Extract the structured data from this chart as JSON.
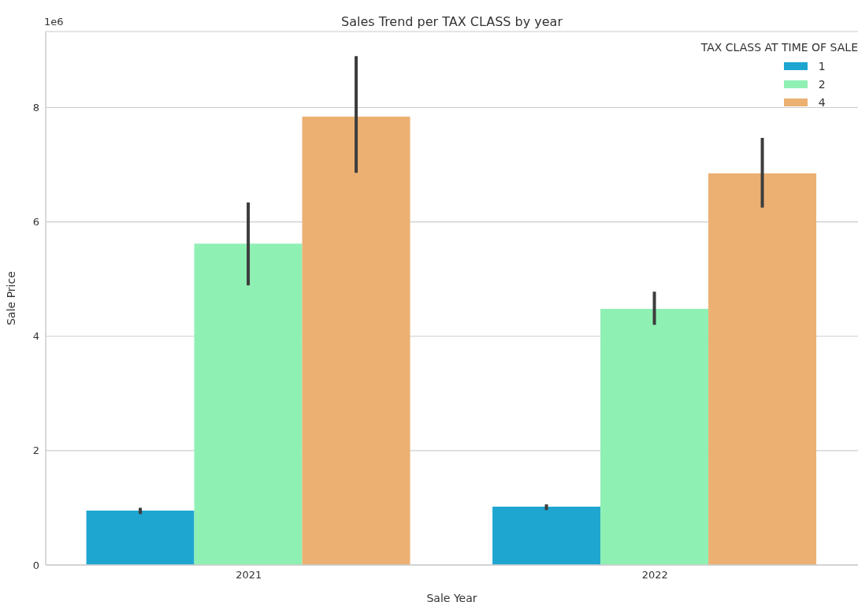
{
  "chart_data": {
    "type": "bar",
    "title": "Sales Trend per TAX CLASS by year",
    "xlabel": "Sale Year",
    "ylabel": "Sale Price",
    "legend_title": "TAX CLASS AT TIME OF SALE",
    "annotations": [
      "1e6"
    ],
    "categories": [
      "2021",
      "2022"
    ],
    "series": [
      {
        "name": "1",
        "color": "#1ea6d1",
        "values": [
          0.95,
          1.02
        ],
        "errors": [
          [
            0.89,
            1.0
          ],
          [
            0.96,
            1.06
          ]
        ]
      },
      {
        "name": "2",
        "color": "#8ff0b4",
        "values": [
          5.62,
          4.48
        ],
        "errors": [
          [
            4.89,
            6.34
          ],
          [
            4.2,
            4.78
          ]
        ]
      },
      {
        "name": "4",
        "color": "#ecb073",
        "values": [
          7.84,
          6.85
        ],
        "errors": [
          [
            6.86,
            8.9
          ],
          [
            6.25,
            7.47
          ]
        ]
      }
    ],
    "ylim": [
      0,
      9.33
    ],
    "yticks": [
      0,
      2,
      4,
      6,
      8
    ],
    "grid": "y",
    "legend": "top right"
  }
}
